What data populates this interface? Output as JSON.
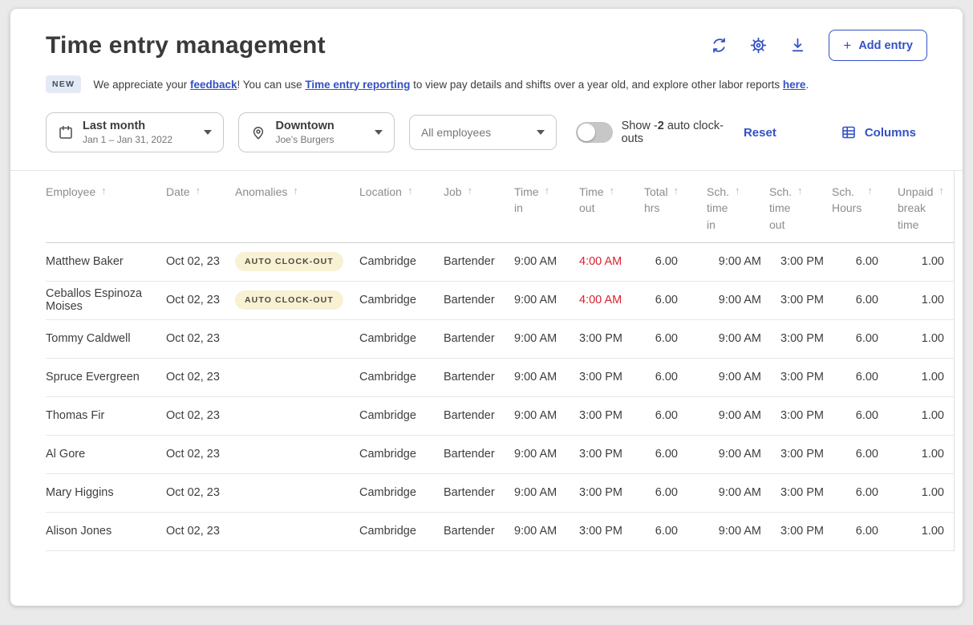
{
  "page": {
    "title": "Time entry management"
  },
  "header": {
    "add_entry_label": "Add entry"
  },
  "icons": {
    "plus": "+",
    "sort_asc": "↑"
  },
  "banner": {
    "badge": "NEW",
    "segments": [
      {
        "text": "We appreciate your "
      },
      {
        "text": "feedback",
        "link": true
      },
      {
        "text": "! You can use "
      },
      {
        "text": "Time entry reporting",
        "link": true
      },
      {
        "text": " to view pay details and shifts over a year old, and explore other labor reports "
      },
      {
        "text": "here",
        "link": true
      },
      {
        "text": "."
      }
    ]
  },
  "filters": {
    "date": {
      "primary": "Last month",
      "secondary": "Jan 1 – Jan 31, 2022"
    },
    "location": {
      "primary": "Downtown",
      "secondary": "Joe's Burgers"
    },
    "employees": {
      "placeholder": "All employees"
    },
    "toggle": {
      "label_prefix": "Show -",
      "label_bold": "2",
      "label_suffix": " auto clock-outs",
      "state": "off"
    },
    "reset_label": "Reset",
    "columns_label": "Columns"
  },
  "table": {
    "columns": [
      {
        "key": "employee",
        "lines": [
          "Employee"
        ]
      },
      {
        "key": "date",
        "lines": [
          "Date"
        ]
      },
      {
        "key": "anomalies",
        "lines": [
          "Anomalies"
        ],
        "type": "badge"
      },
      {
        "key": "location",
        "lines": [
          "Location"
        ]
      },
      {
        "key": "job",
        "lines": [
          "Job"
        ]
      },
      {
        "key": "time_in",
        "lines": [
          "Time",
          "in"
        ]
      },
      {
        "key": "time_out",
        "lines": [
          "Time",
          "out"
        ]
      },
      {
        "key": "total_hrs",
        "lines": [
          "Total",
          "hrs"
        ]
      },
      {
        "key": "sch_time_in",
        "lines": [
          "Sch.",
          "time",
          "in"
        ]
      },
      {
        "key": "sch_time_out",
        "lines": [
          "Sch.",
          "time",
          "out"
        ]
      },
      {
        "key": "sch_hours",
        "lines": [
          "Sch.",
          "Hours"
        ]
      },
      {
        "key": "unpaid_break_time",
        "lines": [
          "Unpaid",
          "break",
          "time"
        ]
      }
    ],
    "rows": [
      {
        "employee": "Matthew Baker",
        "date": "Oct 02, 23",
        "anomalies": "AUTO CLOCK-OUT",
        "location": "Cambridge",
        "job": "Bartender",
        "time_in": "9:00 AM",
        "time_out": "4:00 AM",
        "time_out_alert": true,
        "total_hrs": "6.00",
        "sch_time_in": "9:00 AM",
        "sch_time_out": "3:00 PM",
        "sch_hours": "6.00",
        "unpaid_break_time": "1.00"
      },
      {
        "employee": "Ceballos Espinoza Moises",
        "date": "Oct 02, 23",
        "anomalies": "AUTO CLOCK-OUT",
        "location": "Cambridge",
        "job": "Bartender",
        "time_in": "9:00 AM",
        "time_out": "4:00 AM",
        "time_out_alert": true,
        "total_hrs": "6.00",
        "sch_time_in": "9:00 AM",
        "sch_time_out": "3:00 PM",
        "sch_hours": "6.00",
        "unpaid_break_time": "1.00"
      },
      {
        "employee": "Tommy Caldwell",
        "date": "Oct 02, 23",
        "anomalies": "",
        "location": "Cambridge",
        "job": "Bartender",
        "time_in": "9:00 AM",
        "time_out": "3:00 PM",
        "time_out_alert": false,
        "total_hrs": "6.00",
        "sch_time_in": "9:00 AM",
        "sch_time_out": "3:00 PM",
        "sch_hours": "6.00",
        "unpaid_break_time": "1.00"
      },
      {
        "employee": "Spruce Evergreen",
        "date": "Oct 02, 23",
        "anomalies": "",
        "location": "Cambridge",
        "job": "Bartender",
        "time_in": "9:00 AM",
        "time_out": "3:00 PM",
        "time_out_alert": false,
        "total_hrs": "6.00",
        "sch_time_in": "9:00 AM",
        "sch_time_out": "3:00 PM",
        "sch_hours": "6.00",
        "unpaid_break_time": "1.00"
      },
      {
        "employee": "Thomas Fir",
        "date": "Oct 02, 23",
        "anomalies": "",
        "location": "Cambridge",
        "job": "Bartender",
        "time_in": "9:00 AM",
        "time_out": "3:00 PM",
        "time_out_alert": false,
        "total_hrs": "6.00",
        "sch_time_in": "9:00 AM",
        "sch_time_out": "3:00 PM",
        "sch_hours": "6.00",
        "unpaid_break_time": "1.00"
      },
      {
        "employee": "Al Gore",
        "date": "Oct 02, 23",
        "anomalies": "",
        "location": "Cambridge",
        "job": "Bartender",
        "time_in": "9:00 AM",
        "time_out": "3:00 PM",
        "time_out_alert": false,
        "total_hrs": "6.00",
        "sch_time_in": "9:00 AM",
        "sch_time_out": "3:00 PM",
        "sch_hours": "6.00",
        "unpaid_break_time": "1.00"
      },
      {
        "employee": "Mary Higgins",
        "date": "Oct 02, 23",
        "anomalies": "",
        "location": "Cambridge",
        "job": "Bartender",
        "time_in": "9:00 AM",
        "time_out": "3:00 PM",
        "time_out_alert": false,
        "total_hrs": "6.00",
        "sch_time_in": "9:00 AM",
        "sch_time_out": "3:00 PM",
        "sch_hours": "6.00",
        "unpaid_break_time": "1.00"
      },
      {
        "employee": "Alison Jones",
        "date": "Oct 02, 23",
        "anomalies": "",
        "location": "Cambridge",
        "job": "Bartender",
        "time_in": "9:00 AM",
        "time_out": "3:00 PM",
        "time_out_alert": false,
        "total_hrs": "6.00",
        "sch_time_in": "9:00 AM",
        "sch_time_out": "3:00 PM",
        "sch_hours": "6.00",
        "unpaid_break_time": "1.00"
      }
    ]
  },
  "colors": {
    "accent_blue": "#3351c5",
    "alert_red": "#d8232e",
    "anomaly_badge_bg": "#f8f1d3",
    "anomaly_badge_text": "#4c4a42",
    "new_badge_bg": "#e3eaf3",
    "new_badge_text": "#3e4f66",
    "toggle_off": "#c7c7c7"
  }
}
